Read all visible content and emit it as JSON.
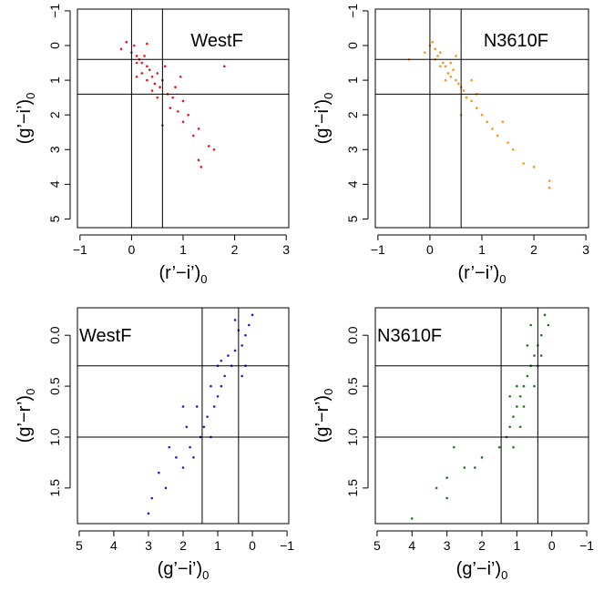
{
  "chart_data": [
    {
      "type": "scatter",
      "title": "WestF",
      "xlabel": "(r’−i’)",
      "xlabel_sub": "0",
      "ylabel": "(g’−i’)",
      "ylabel_sub": "0",
      "color": "#e8151b",
      "x": [
        -0.2,
        0.0,
        0.1,
        0.05,
        0.15,
        0.2,
        0.25,
        0.3,
        0.1,
        0.35,
        0.4,
        0.3,
        0.45,
        0.5,
        0.55,
        0.6,
        0.4,
        0.7,
        0.65,
        0.8,
        0.75,
        0.9,
        1.0,
        1.1,
        1.2,
        1.3,
        1.5,
        1.6,
        1.3,
        1.35,
        1.8,
        0.2,
        -0.1,
        0.3,
        0.5,
        0.85,
        0.1,
        0.6,
        1.0,
        0.95
      ],
      "values": [
        0.1,
        0.2,
        0.3,
        0.0,
        0.4,
        0.5,
        0.3,
        0.6,
        0.5,
        0.7,
        0.9,
        1.0,
        1.1,
        0.8,
        1.2,
        1.0,
        1.3,
        1.4,
        0.6,
        1.5,
        1.8,
        1.9,
        2.2,
        2.0,
        2.6,
        2.4,
        2.9,
        3.0,
        3.3,
        3.5,
        0.6,
        0.8,
        -0.1,
        -0.05,
        1.5,
        1.2,
        0.9,
        2.3,
        1.6,
        0.9
      ],
      "vlines": [
        0,
        0.6
      ],
      "hlines": [
        0.4,
        1.4
      ],
      "xlim": [
        -1.05,
        3.05
      ],
      "ylim": [
        5.25,
        -1.05
      ],
      "xticks": [
        {
          "value": -1,
          "label": "−1"
        },
        0,
        1,
        2,
        3
      ],
      "yticks": [
        {
          "value": -1,
          "label": "−1"
        },
        0,
        1,
        2,
        3,
        4,
        5
      ]
    },
    {
      "type": "scatter",
      "title": "N3610F",
      "xlabel": "(r’−i’)",
      "xlabel_sub": "0",
      "ylabel": "(g’−i’)",
      "ylabel_sub": "0",
      "color": "#f7931e",
      "x": [
        0.0,
        0.1,
        0.15,
        0.2,
        0.25,
        0.3,
        0.35,
        0.4,
        0.3,
        0.45,
        0.5,
        0.55,
        0.6,
        0.2,
        0.1,
        0.4,
        0.65,
        0.7,
        0.8,
        0.9,
        1.0,
        1.1,
        1.2,
        1.3,
        1.5,
        1.6,
        1.8,
        2.0,
        2.3,
        2.3,
        -0.4,
        -0.1,
        0.5,
        0.9,
        0.6,
        1.4,
        0.05,
        0.8
      ],
      "values": [
        0.0,
        0.1,
        0.3,
        0.2,
        0.5,
        0.6,
        0.8,
        0.9,
        1.0,
        0.7,
        1.0,
        1.1,
        1.2,
        0.6,
        0.4,
        0.5,
        1.3,
        1.5,
        1.6,
        1.8,
        2.0,
        2.2,
        2.4,
        2.6,
        2.8,
        3.0,
        3.4,
        3.5,
        3.9,
        4.1,
        0.4,
        0.2,
        0.3,
        1.4,
        2.0,
        2.2,
        -0.1,
        1.0
      ],
      "vlines": [
        0,
        0.6
      ],
      "hlines": [
        0.4,
        1.4
      ],
      "xlim": [
        -1.05,
        3.05
      ],
      "ylim": [
        5.25,
        -1.05
      ],
      "xticks": [
        {
          "value": -1,
          "label": "−1"
        },
        0,
        1,
        2,
        3
      ],
      "yticks": [
        {
          "value": -1,
          "label": "−1"
        },
        0,
        1,
        2,
        3,
        4,
        5
      ]
    },
    {
      "type": "scatter",
      "title": "WestF",
      "xlabel": "(g’−i’)",
      "xlabel_sub": "0",
      "ylabel": "(g’−r’)",
      "ylabel_sub": "0",
      "color": "#1f1fcc",
      "x": [
        0.0,
        0.1,
        0.2,
        0.3,
        0.4,
        0.5,
        0.6,
        0.7,
        0.8,
        0.9,
        1.0,
        1.1,
        1.2,
        1.3,
        1.4,
        1.5,
        1.6,
        1.7,
        1.8,
        2.0,
        2.2,
        2.5,
        2.7,
        2.9,
        3.0,
        2.0,
        1.9,
        0.3,
        0.9,
        1.2,
        0.5,
        1.0,
        2.4,
        0.2
      ],
      "values": [
        -0.2,
        -0.1,
        0.0,
        0.1,
        -0.05,
        0.15,
        0.3,
        0.2,
        0.4,
        0.5,
        0.6,
        0.7,
        0.5,
        0.8,
        0.9,
        1.0,
        0.7,
        1.2,
        1.1,
        1.3,
        1.2,
        1.5,
        1.35,
        1.6,
        1.75,
        0.7,
        0.9,
        0.4,
        0.25,
        1.0,
        -0.15,
        0.3,
        1.1,
        0.3
      ],
      "vlines": [
        1.45,
        0.4
      ],
      "hlines": [
        0.3,
        1.0
      ],
      "xlim": [
        5.05,
        -1.05
      ],
      "ylim": [
        1.85,
        -0.27
      ],
      "xticks": [
        5,
        4,
        3,
        2,
        1,
        0,
        {
          "value": -1,
          "label": "−1"
        }
      ],
      "yticks": [
        {
          "value": 0,
          "label": "0.0"
        },
        0.5,
        {
          "value": 1,
          "label": "1.0"
        },
        1.5
      ]
    },
    {
      "type": "scatter",
      "title": "N3610F",
      "xlabel": "(g’−i’)",
      "xlabel_sub": "0",
      "ylabel": "(g’−r’)",
      "ylabel_sub": "0",
      "color": "#1a7a1a",
      "x": [
        0.2,
        0.3,
        0.4,
        0.5,
        0.6,
        0.7,
        0.8,
        0.9,
        1.0,
        1.1,
        1.2,
        1.0,
        0.8,
        0.9,
        1.3,
        1.1,
        0.3,
        0.1,
        0.5,
        1.5,
        2.0,
        2.2,
        2.5,
        3.0,
        3.3,
        3.0,
        4.0,
        2.8,
        0.7,
        1.2,
        0.6,
        0.4
      ],
      "values": [
        -0.2,
        0.0,
        0.1,
        0.2,
        0.3,
        0.4,
        0.5,
        0.6,
        0.7,
        0.8,
        0.9,
        0.5,
        0.7,
        0.9,
        1.0,
        1.1,
        0.2,
        -0.1,
        0.5,
        1.1,
        1.2,
        1.3,
        1.3,
        1.4,
        1.5,
        1.6,
        1.8,
        1.1,
        0.1,
        0.6,
        -0.1,
        0.3
      ],
      "vlines": [
        1.45,
        0.4
      ],
      "hlines": [
        0.3,
        1.0
      ],
      "xlim": [
        5.05,
        -1.05
      ],
      "ylim": [
        1.85,
        -0.27
      ],
      "xticks": [
        5,
        4,
        3,
        2,
        1,
        0,
        {
          "value": -1,
          "label": "−1"
        }
      ],
      "yticks": [
        {
          "value": 0,
          "label": "0.0"
        },
        0.5,
        {
          "value": 1,
          "label": "1.0"
        },
        1.5
      ]
    }
  ]
}
